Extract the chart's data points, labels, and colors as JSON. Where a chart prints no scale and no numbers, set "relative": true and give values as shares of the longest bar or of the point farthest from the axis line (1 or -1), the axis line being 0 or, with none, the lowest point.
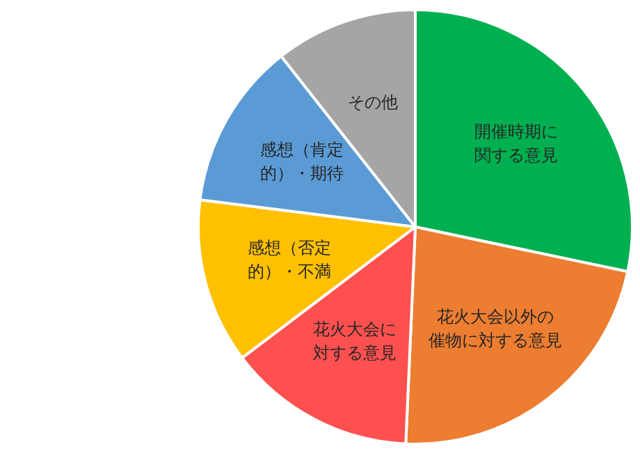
{
  "chart_data": {
    "type": "pie",
    "relative": true,
    "categories": [
      "開催時期に関する意見",
      "花火大会以外の催物に対する意見",
      "花火大会に対する意見",
      "感想（否定的）・不満",
      "感想（肯定的）・期待",
      "その他"
    ],
    "values": [
      28.3,
      22.4,
      14,
      12.3,
      12.4,
      10.6
    ],
    "colors": [
      "#00b050",
      "#ed7d31",
      "#ff5050",
      "#ffc000",
      "#5b9bd5",
      "#a5a5a5"
    ],
    "legend": false
  }
}
